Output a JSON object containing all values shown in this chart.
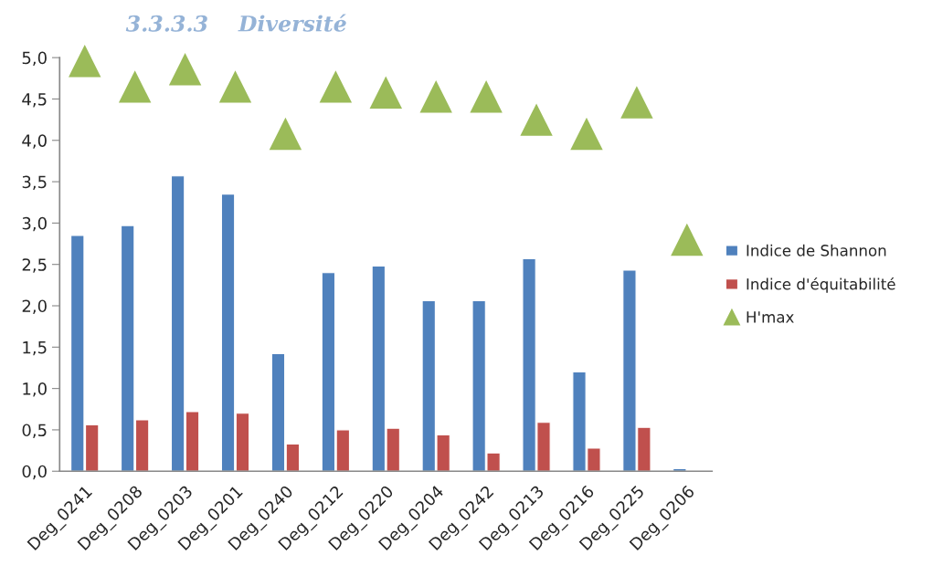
{
  "chart_data": {
    "type": "bar",
    "title": "3.3.3.3    Diversité",
    "categories": [
      "Deg_0241",
      "Deg_0208",
      "Deg_0203",
      "Deg_0201",
      "Deg_0240",
      "Deg_0212",
      "Deg_0220",
      "Deg_0204",
      "Deg_0242",
      "Deg_0213",
      "Deg_0216",
      "Deg_0225",
      "Deg_0206"
    ],
    "series": [
      {
        "name": "Indice de Shannon",
        "type": "bar",
        "color": "#4f81bd",
        "values": [
          2.85,
          2.97,
          3.57,
          3.35,
          1.42,
          2.4,
          2.48,
          2.06,
          2.06,
          2.57,
          1.2,
          2.43,
          0.03
        ]
      },
      {
        "name": "Indice d'équitabilité",
        "type": "bar",
        "color": "#c0504d",
        "values": [
          0.56,
          0.62,
          0.72,
          0.7,
          0.33,
          0.5,
          0.52,
          0.44,
          0.22,
          0.59,
          0.28,
          0.53,
          null
        ]
      },
      {
        "name": "H'max",
        "type": "scatter",
        "color": "#9bbb59",
        "marker": "triangle",
        "values": [
          4.96,
          4.65,
          4.86,
          4.65,
          4.08,
          4.65,
          4.58,
          4.53,
          4.53,
          4.25,
          4.08,
          4.46,
          2.8
        ]
      }
    ],
    "ylim": [
      0,
      5
    ],
    "yticks": [
      {
        "value": 0,
        "label": "0,0"
      },
      {
        "value": 0.5,
        "label": "0,5"
      },
      {
        "value": 1,
        "label": "1,0"
      },
      {
        "value": 1.5,
        "label": "1,5"
      },
      {
        "value": 2,
        "label": "2,0"
      },
      {
        "value": 2.5,
        "label": "2,5"
      },
      {
        "value": 3,
        "label": "3,0"
      },
      {
        "value": 3.5,
        "label": "3,5"
      },
      {
        "value": 4,
        "label": "4,0"
      },
      {
        "value": 4.5,
        "label": "4,5"
      },
      {
        "value": 5,
        "label": "5,0"
      }
    ],
    "grid": false,
    "legend": "right"
  }
}
